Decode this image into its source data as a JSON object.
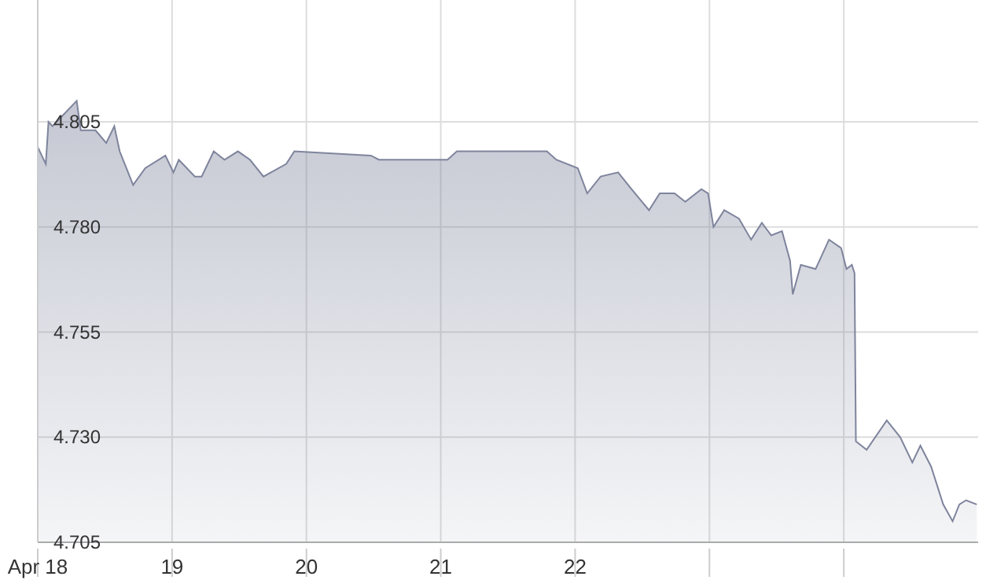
{
  "chart_data": {
    "type": "area",
    "x": [
      18.0,
      18.06,
      18.08,
      18.11,
      18.17,
      18.29,
      18.32,
      18.43,
      18.51,
      18.57,
      18.61,
      18.71,
      18.8,
      18.95,
      19.01,
      19.05,
      19.17,
      19.22,
      19.31,
      19.39,
      19.49,
      19.58,
      19.68,
      19.85,
      19.91,
      20.48,
      20.54,
      20.94,
      21.05,
      21.12,
      21.31,
      21.74,
      21.79,
      21.86,
      22.02,
      22.09,
      22.19,
      22.32,
      22.42,
      22.55,
      22.63,
      22.74,
      22.82,
      22.94,
      22.99,
      23.03,
      23.11,
      23.22,
      23.31,
      23.39,
      23.46,
      23.54,
      23.6,
      23.62,
      23.68,
      23.79,
      23.89,
      23.98,
      24.02,
      24.06,
      24.08,
      24.09,
      24.17,
      24.32,
      24.42,
      24.51,
      24.57,
      24.65,
      24.74,
      24.81,
      24.86,
      24.91,
      24.99
    ],
    "series": [
      {
        "color": "#7e849c",
        "values": [
          4.799,
          4.795,
          4.805,
          4.804,
          4.806,
          4.81,
          4.803,
          4.803,
          4.8,
          4.804,
          4.798,
          4.79,
          4.794,
          4.797,
          4.793,
          4.796,
          4.792,
          4.792,
          4.798,
          4.796,
          4.798,
          4.796,
          4.792,
          4.795,
          4.798,
          4.797,
          4.796,
          4.796,
          4.796,
          4.798,
          4.798,
          4.798,
          4.798,
          4.796,
          4.794,
          4.788,
          4.792,
          4.793,
          4.789,
          4.784,
          4.788,
          4.788,
          4.786,
          4.789,
          4.788,
          4.78,
          4.784,
          4.782,
          4.777,
          4.781,
          4.778,
          4.779,
          4.772,
          4.764,
          4.771,
          4.77,
          4.777,
          4.775,
          4.77,
          4.771,
          4.769,
          4.729,
          4.727,
          4.734,
          4.73,
          4.724,
          4.728,
          4.723,
          4.714,
          4.71,
          4.714,
          4.715,
          4.714
        ]
      }
    ],
    "xlim": [
      18,
      25
    ],
    "xticks": [
      {
        "value": 18,
        "label": "Apr 18"
      },
      19,
      20,
      21,
      22,
      {
        "value": 23,
        "label": null
      },
      {
        "value": 24,
        "label": null
      }
    ],
    "ylim": [
      4.705,
      4.834
    ],
    "yticks": [
      4.705,
      {
        "value": 4.73,
        "label": "4.730"
      },
      4.755,
      {
        "value": 4.78,
        "label": "4.780"
      },
      4.805
    ],
    "grid": true
  }
}
